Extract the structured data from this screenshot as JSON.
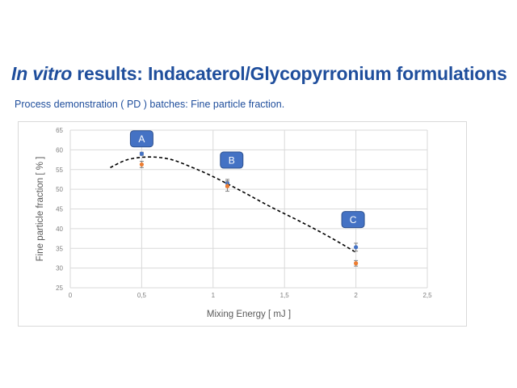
{
  "slide": {
    "title_italic": "In vitro",
    "title_rest": " results: Indacaterol/Glycopyrronium formulations",
    "subtitle": "Process demonstration ( PD ) batches: Fine particle fraction."
  },
  "chart_data": {
    "type": "scatter",
    "xlabel": "Mixing Energy  [ mJ ]",
    "ylabel": "Fine particle fraction  [ % ]",
    "xlim": [
      0,
      2.5
    ],
    "ylim": [
      25,
      65
    ],
    "x_ticks": [
      "0",
      "0,5",
      "1",
      "1,5",
      "2",
      "2,5"
    ],
    "y_ticks": [
      "25",
      "30",
      "35",
      "40",
      "45",
      "50",
      "55",
      "60",
      "65"
    ],
    "grid": true,
    "series": [
      {
        "color": "#4472c4",
        "points": [
          {
            "x": 0.5,
            "y": 59.0,
            "err": 0.4
          },
          {
            "x": 1.1,
            "y": 51.5,
            "err": 1.0
          },
          {
            "x": 2.0,
            "y": 35.3,
            "err": 1.0
          }
        ]
      },
      {
        "color": "#ed7d31",
        "points": [
          {
            "x": 0.5,
            "y": 56.3,
            "err": 0.8
          },
          {
            "x": 1.1,
            "y": 50.8,
            "err": 1.3
          },
          {
            "x": 2.0,
            "y": 31.2,
            "err": 0.7
          }
        ]
      }
    ],
    "trendline": {
      "style": "dashed",
      "color": "#000000",
      "points": [
        [
          0.28,
          55.5
        ],
        [
          0.4,
          57.5
        ],
        [
          0.55,
          58.2
        ],
        [
          0.7,
          57.6
        ],
        [
          0.85,
          55.6
        ],
        [
          1.0,
          53.2
        ],
        [
          1.2,
          49.5
        ],
        [
          1.4,
          45.6
        ],
        [
          1.6,
          42.0
        ],
        [
          1.8,
          38.2
        ],
        [
          2.0,
          34.0
        ]
      ]
    },
    "annotations": [
      {
        "label": "A",
        "x": 0.5,
        "y": 62.8,
        "color": "#4472c4"
      },
      {
        "label": "B",
        "x": 1.13,
        "y": 57.4,
        "color": "#4472c4"
      },
      {
        "label": "C",
        "x": 1.98,
        "y": 42.3,
        "color": "#4472c4"
      }
    ]
  }
}
